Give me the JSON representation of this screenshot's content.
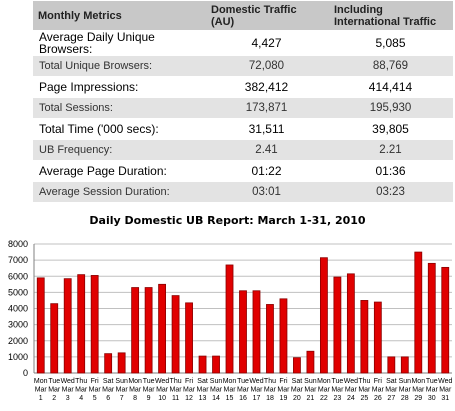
{
  "table": {
    "headers": [
      "Monthly Metrics",
      "Domestic Traffic (AU)",
      "Including International Traffic"
    ],
    "rows": [
      [
        "Average Daily Unique Browsers:",
        "4,427",
        "5,085"
      ],
      [
        "Total Unique Browsers:",
        "72,080",
        "88,769"
      ],
      [
        "Page Impressions:",
        "382,412",
        "414,414"
      ],
      [
        "Total Sessions:",
        "173,871",
        "195,930"
      ],
      [
        "Total Time ('000 secs):",
        "31,511",
        "39,805"
      ],
      [
        "UB Frequency:",
        "2.41",
        "2.21"
      ],
      [
        "Average Page Duration:",
        "01:22",
        "01:36"
      ],
      [
        "Average Session Duration:",
        "03:01",
        "03:23"
      ]
    ],
    "row_colors": {
      "header": "#c8c8c8",
      "shaded": "#e3e3e3",
      "plain": "#ffffff"
    }
  },
  "chart_data": {
    "type": "bar",
    "title": "Daily Domestic UB Report: March 1-31, 2010",
    "xlabel": "",
    "ylabel": "",
    "ylim": [
      0,
      8000
    ],
    "yticks": [
      0,
      1000,
      2000,
      3000,
      4000,
      5000,
      6000,
      7000,
      8000
    ],
    "grid": true,
    "legend": "none",
    "bar_color": "#e00000",
    "categories": [
      [
        "Mon",
        "Mar",
        "1"
      ],
      [
        "Tue",
        "Mar",
        "2"
      ],
      [
        "Wed",
        "Mar",
        "3"
      ],
      [
        "Thu",
        "Mar",
        "4"
      ],
      [
        "Fri",
        "Mar",
        "5"
      ],
      [
        "Sat",
        "Mar",
        "6"
      ],
      [
        "Sun",
        "Mar",
        "7"
      ],
      [
        "Mon",
        "Mar",
        "8"
      ],
      [
        "Tue",
        "Mar",
        "9"
      ],
      [
        "Wed",
        "Mar",
        "10"
      ],
      [
        "Thu",
        "Mar",
        "11"
      ],
      [
        "Fri",
        "Mar",
        "12"
      ],
      [
        "Sat",
        "Mar",
        "13"
      ],
      [
        "Sun",
        "Mar",
        "14"
      ],
      [
        "Mon",
        "Mar",
        "15"
      ],
      [
        "Tue",
        "Mar",
        "16"
      ],
      [
        "Wed",
        "Mar",
        "17"
      ],
      [
        "Thu",
        "Mar",
        "18"
      ],
      [
        "Fri",
        "Mar",
        "19"
      ],
      [
        "Sat",
        "Mar",
        "20"
      ],
      [
        "Sun",
        "Mar",
        "21"
      ],
      [
        "Mon",
        "Mar",
        "22"
      ],
      [
        "Tue",
        "Mar",
        "23"
      ],
      [
        "Wed",
        "Mar",
        "24"
      ],
      [
        "Thu",
        "Mar",
        "25"
      ],
      [
        "Fri",
        "Mar",
        "26"
      ],
      [
        "Sat",
        "Mar",
        "27"
      ],
      [
        "Sun",
        "Mar",
        "28"
      ],
      [
        "Mon",
        "Mar",
        "29"
      ],
      [
        "Tue",
        "Mar",
        "30"
      ],
      [
        "Wed",
        "Mar",
        "31"
      ]
    ],
    "values": [
      5900,
      4300,
      5850,
      6100,
      6050,
      1200,
      1250,
      5300,
      5300,
      5500,
      4800,
      4350,
      1050,
      1050,
      6700,
      5100,
      5100,
      4250,
      4600,
      950,
      1350,
      7150,
      5950,
      6150,
      4500,
      4400,
      1000,
      1000,
      7500,
      6800,
      6550
    ]
  }
}
